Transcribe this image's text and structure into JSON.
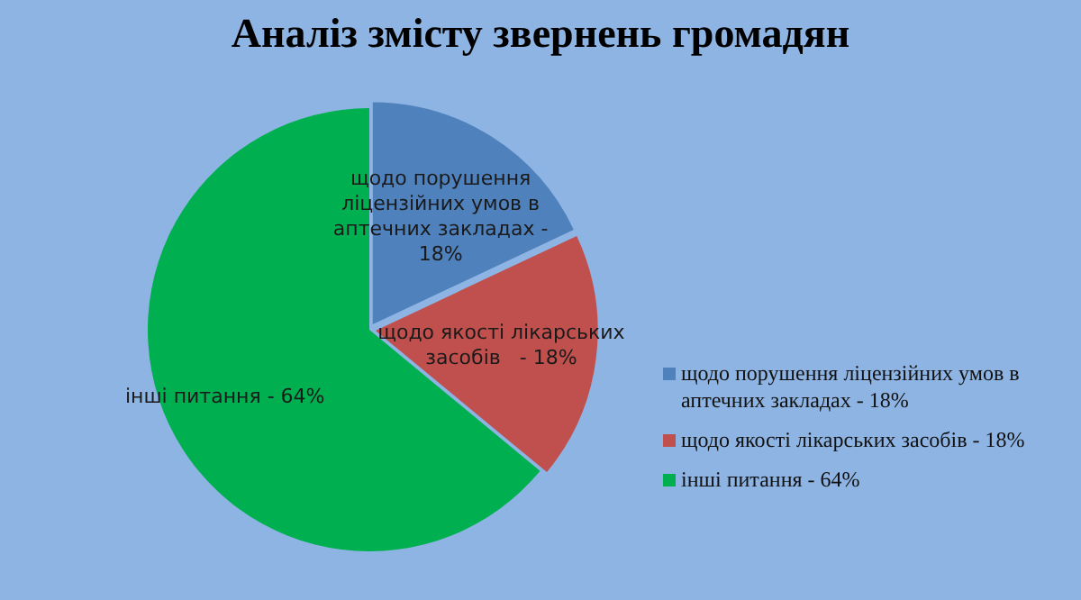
{
  "chart_data": {
    "type": "pie",
    "title": "Аналіз змісту звернень громадян",
    "categories": [
      "щодо порушення ліцензійних умов в аптечних закладах - 18%",
      "щодо якості лікарських засобів   - 18%",
      "інші питання - 64%"
    ],
    "values": [
      18,
      18,
      64
    ],
    "colors": [
      "#4f81bd",
      "#c0504d",
      "#00b050"
    ],
    "legend": "right"
  }
}
